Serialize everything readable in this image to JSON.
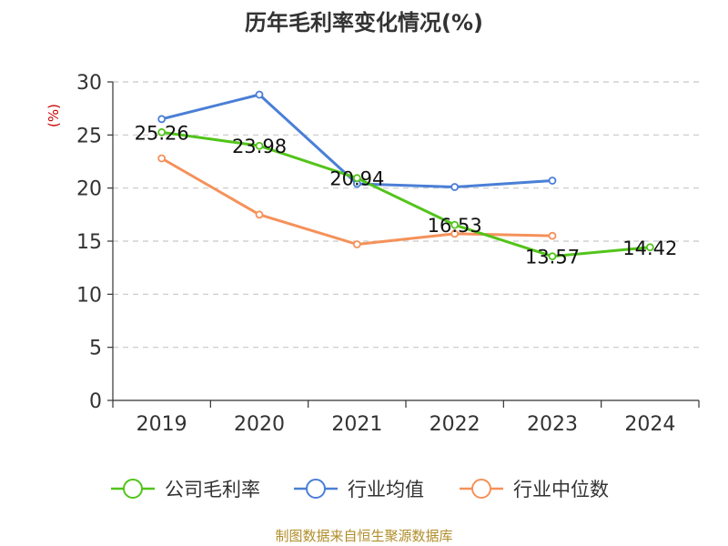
{
  "chart_data": {
    "type": "line",
    "title": "历年毛利率变化情况(%)",
    "ylabel": "(%)",
    "xlabel": "",
    "categories": [
      "2019",
      "2020",
      "2021",
      "2022",
      "2023",
      "2024"
    ],
    "ylim": [
      0,
      30
    ],
    "yticks": [
      0,
      5,
      10,
      15,
      20,
      25,
      30
    ],
    "grid": true,
    "legend_position": "bottom",
    "series": [
      {
        "name": "公司毛利率",
        "color": "#52c41a",
        "values": [
          25.26,
          23.98,
          20.94,
          16.53,
          13.57,
          14.42
        ],
        "labels": [
          "25.26",
          "23.98",
          "20.94",
          "16.53",
          "13.57",
          "14.42"
        ]
      },
      {
        "name": "行业均值",
        "color": "#4a7fd6",
        "values": [
          26.5,
          28.8,
          20.4,
          20.1,
          20.7,
          null
        ]
      },
      {
        "name": "行业中位数",
        "color": "#f5915a",
        "values": [
          22.8,
          17.5,
          14.7,
          15.7,
          15.5,
          null
        ]
      }
    ]
  },
  "source": "制图数据来自恒生聚源数据库"
}
